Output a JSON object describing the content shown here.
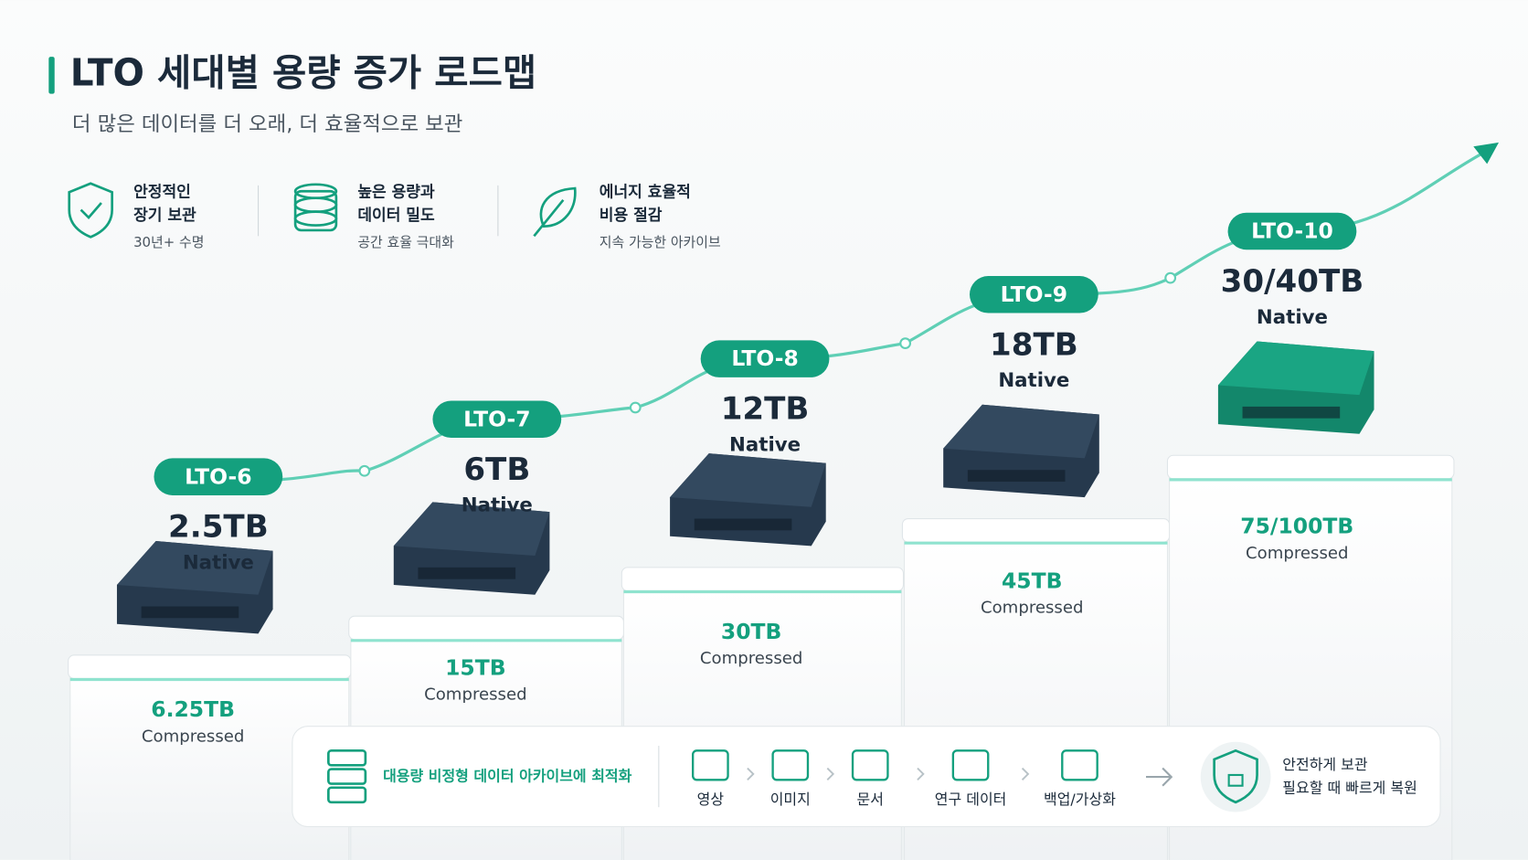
{
  "header": {
    "title": "LTO 세대별 용량 증가 로드맵",
    "subtitle": "더 많은 데이터를 더 오래, 더 효율적으로 보관"
  },
  "features": [
    {
      "lines": [
        "안정적인",
        "장기 보관"
      ],
      "detail": "30년+ 수명"
    },
    {
      "lines": [
        "높은 용량과",
        "데이터 밀도"
      ],
      "detail": "공간 효율 극대화"
    },
    {
      "lines": [
        "에너지 효율적",
        "비용 절감"
      ],
      "detail": "지속 가능한 아카이브"
    }
  ],
  "generations": [
    {
      "name": "LTO-6",
      "native": "2.5TB",
      "native_label": "Native",
      "compressed": "6.25TB",
      "compressed_label": "Compressed"
    },
    {
      "name": "LTO-7",
      "native": "6TB",
      "native_label": "Native",
      "compressed": "15TB",
      "compressed_label": "Compressed"
    },
    {
      "name": "LTO-8",
      "native": "12TB",
      "native_label": "Native",
      "compressed": "30TB",
      "compressed_label": "Compressed"
    },
    {
      "name": "LTO-9",
      "native": "18TB",
      "native_label": "Native",
      "compressed": "45TB",
      "compressed_label": "Compressed"
    },
    {
      "name": "LTO-10",
      "native": "30/40TB",
      "native_label": "Native",
      "compressed": "75/100TB",
      "compressed_label": "Compressed"
    }
  ],
  "workflow": {
    "label": "대용량 비정형 데이터 아카이브에 최적화",
    "steps": [
      "영상",
      "이미지",
      "문서",
      "연구 데이터",
      "백업/가상화"
    ],
    "result": [
      "안전하게 보관",
      "필요할 때 빠르게 복원"
    ]
  }
}
